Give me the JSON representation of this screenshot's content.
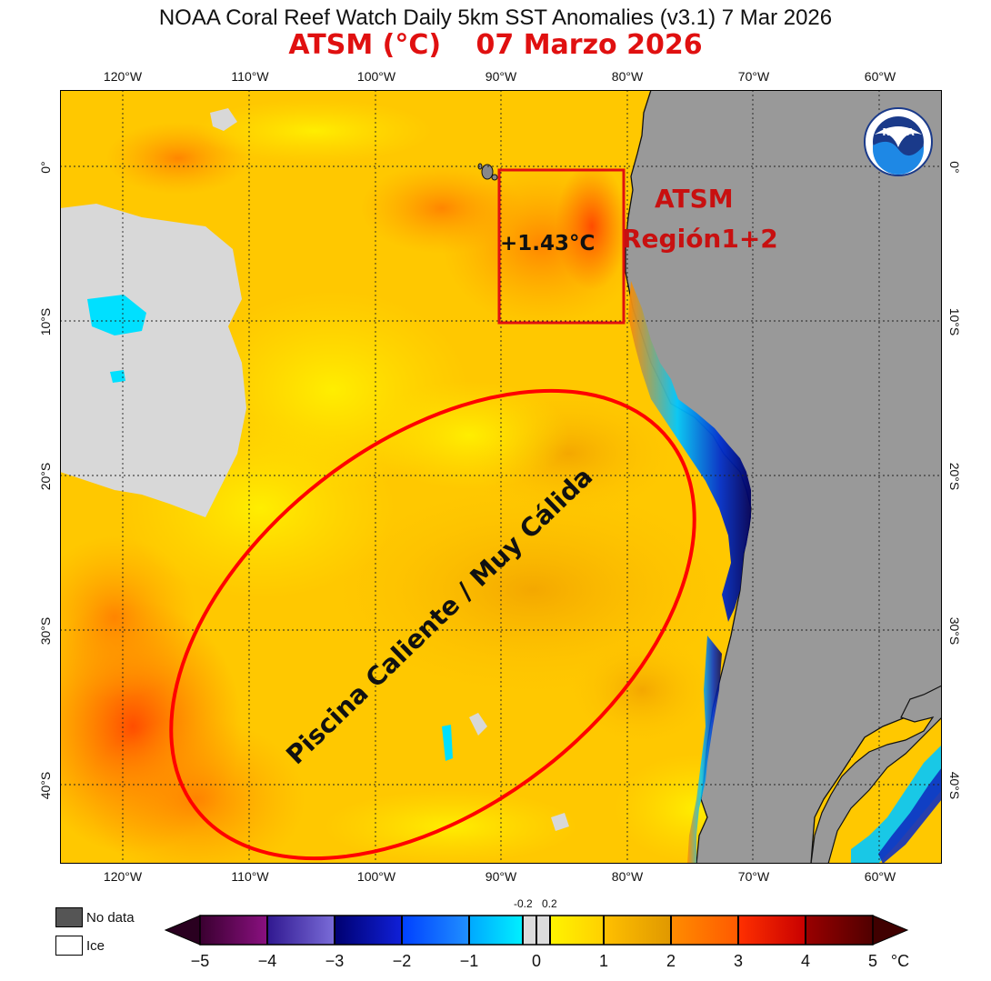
{
  "header": {
    "title": "NOAA Coral Reef Watch Daily 5km SST Anomalies  (v3.1)   7 Mar 2026",
    "subtitle_left": "ATSM (°C)",
    "subtitle_right": "07 Marzo 2026"
  },
  "axes": {
    "lon_ticks": [
      "120°W",
      "110°W",
      "100°W",
      "90°W",
      "80°W",
      "70°W",
      "60°W"
    ],
    "lat_ticks": [
      "0°",
      "10°S",
      "20°S",
      "30°S",
      "40°S"
    ],
    "lon_range": [
      -125,
      -55
    ],
    "lat_range": [
      5,
      -45
    ],
    "grid": true
  },
  "logo": {
    "text": "NOAA",
    "ring_text": "NATIONAL OCEANIC AND ATMOSPHERIC ADMINISTRATION · U.S. DEPARTMENT OF COMMERCE"
  },
  "annotations": {
    "region_box": {
      "lon": [
        -90,
        -80
      ],
      "lat": [
        0,
        -10
      ],
      "color": "#e01010"
    },
    "region_value": "+1.43°C",
    "region_label_line1": "ATSM",
    "region_label_line2": "Región1+2",
    "pool_text": "Piscina Caliente  /  Muy Cálida",
    "ellipse_color": "#ff0000"
  },
  "legend": {
    "no_data": "No data",
    "ice": "Ice",
    "no_data_color": "#555555",
    "ice_color": "#ffffff"
  },
  "colorbar": {
    "labels": [
      "−5",
      "−4",
      "−3",
      "−2",
      "−1",
      "0",
      "1",
      "2",
      "3",
      "4",
      "5"
    ],
    "small_left": "-0.2",
    "small_right": "0.2",
    "unit": "°C",
    "colors": {
      "m5_m4": [
        "#2a0024",
        "#7a0a6a"
      ],
      "m4_m3": [
        "#2a1480",
        "#6a5ac8"
      ],
      "m3_m2": [
        "#00006e",
        "#1020d0"
      ],
      "m2_m1": [
        "#0044ff",
        "#1a8cff"
      ],
      "m1_m02": [
        "#00b0ff",
        "#00e8ff"
      ],
      "m02_02": "#dcdcdc",
      "p02_1": [
        "#fff200",
        "#ffd700"
      ],
      "p1_2": [
        "#ffc000",
        "#e8a800"
      ],
      "p2_3": [
        "#ff8c00",
        "#ff6a00"
      ],
      "p3_4": [
        "#ff3300",
        "#d40000"
      ],
      "p4_5": [
        "#a00000",
        "#5a0000"
      ]
    }
  }
}
